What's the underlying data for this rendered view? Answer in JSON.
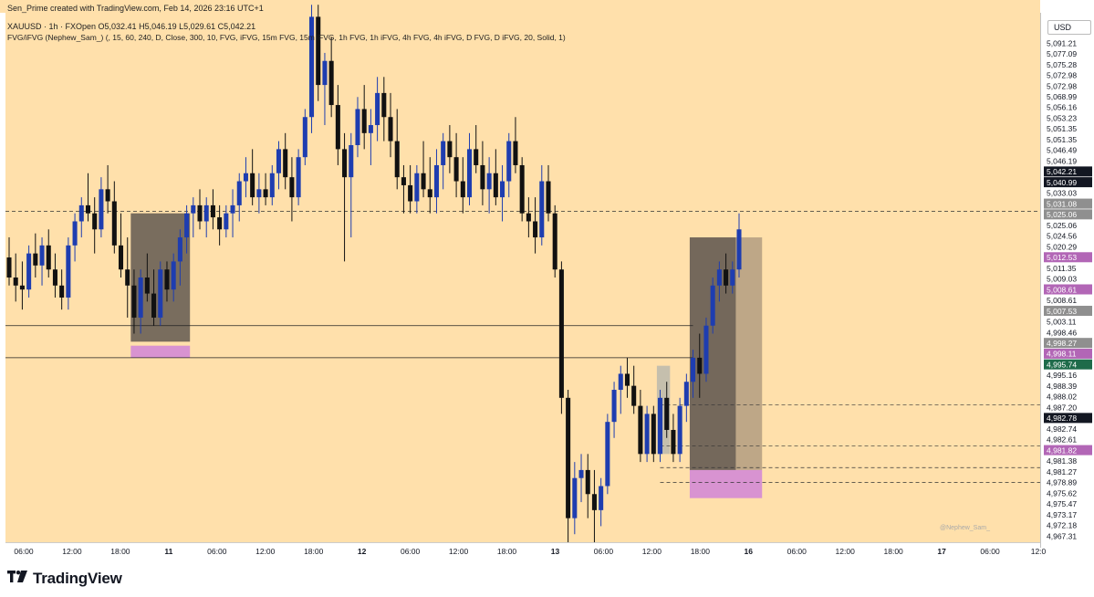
{
  "header": {
    "line1": "Sen_Prime created with TradingView.com, Feb 14, 2026 23:16 UTC+1",
    "line2": "XAUUSD · 1h · FXOpen  O5,032.41  H5,046.19  L5,029.61  C5,042.21",
    "line3": "FVG/iFVG (Nephew_Sam_) (, 15, 60, 240, D, Close, 300, 10, FVG, iFVG, 15m FVG, 15m iFVG, 1h FVG, 1h iFVG, 4h FVG, 4h iFVG, D FVG, D iFVG, 20, Solid, 1)"
  },
  "currency_label": "USD",
  "brand": "TradingView",
  "watermark": "@Nephew_Sam_",
  "colors": {
    "background": "#FFE0AB",
    "bull": "#1E3DB0",
    "bear": "#111111",
    "pink": "#D58CD4",
    "dark_zone": "#6E6357",
    "tan_zone": "#B8A283",
    "grey_bar": "#B6B7AE"
  },
  "chart_data": {
    "type": "candlestick",
    "symbol": "XAUUSD",
    "timeframe": "1h",
    "y_ticks": [
      "5,091.21",
      "5,077.09",
      "5,075.28",
      "5,072.98",
      "5,072.98",
      "5,068.99",
      "5,056.16",
      "5,053.23",
      "5,051.35",
      "5,051.35",
      "5,046.49",
      "5,046.19",
      "5,042.21",
      "5,040.99",
      "5,033.03",
      "5,031.08",
      "5,025.06",
      "5,025.06",
      "5,024.56",
      "5,020.29",
      "5,012.53",
      "5,011.35",
      "5,009.03",
      "5,008.61",
      "5,008.61",
      "5,007.53",
      "5,003.11",
      "4,998.46",
      "4,998.27",
      "4,998.11",
      "4,995.74",
      "4,995.16",
      "4,988.39",
      "4,988.02",
      "4,987.20",
      "4,982.78",
      "4,982.74",
      "4,982.61",
      "4,981.82",
      "4,981.38",
      "4,981.27",
      "4,978.89",
      "4,975.62",
      "4,975.47",
      "4,973.17",
      "4,972.18",
      "4,967.31"
    ],
    "y_tick_styles": {
      "5,042.21": "dark",
      "5,040.99": "dark",
      "5,031.08": "grey",
      "5,025.06": "grey",
      "5,012.53": "pink",
      "5,008.61": "pink",
      "5,007.53": "grey",
      "4,998.27": "grey",
      "4,998.11": "pink",
      "4,995.74": "green",
      "4,982.78": "dark",
      "4,981.82": "pink"
    },
    "x_ticks": [
      "06:00",
      "12:00",
      "18:00",
      "11",
      "06:00",
      "12:00",
      "18:00",
      "12",
      "06:00",
      "12:00",
      "18:00",
      "13",
      "06:00",
      "12:00",
      "18:00",
      "16",
      "06:00",
      "12:00",
      "18:00",
      "17",
      "06:00",
      "12:0"
    ],
    "x_bold": [
      "11",
      "12",
      "13",
      "16",
      "17"
    ],
    "candles_ohlc": [
      [
        5035,
        5040,
        5028,
        5030
      ],
      [
        5030,
        5036,
        5024,
        5028
      ],
      [
        5028,
        5034,
        5022,
        5027
      ],
      [
        5027,
        5038,
        5025,
        5036
      ],
      [
        5036,
        5041,
        5030,
        5033
      ],
      [
        5033,
        5040,
        5028,
        5038
      ],
      [
        5038,
        5042,
        5030,
        5032
      ],
      [
        5032,
        5036,
        5025,
        5028
      ],
      [
        5028,
        5032,
        5022,
        5025
      ],
      [
        5025,
        5040,
        5022,
        5038
      ],
      [
        5038,
        5046,
        5034,
        5044
      ],
      [
        5044,
        5050,
        5040,
        5048
      ],
      [
        5048,
        5056,
        5044,
        5046
      ],
      [
        5046,
        5050,
        5036,
        5042
      ],
      [
        5042,
        5055,
        5040,
        5052
      ],
      [
        5052,
        5058,
        5046,
        5049
      ],
      [
        5049,
        5054,
        5036,
        5038
      ],
      [
        5038,
        5046,
        5030,
        5032
      ],
      [
        5032,
        5040,
        5020,
        5028
      ],
      [
        5028,
        5032,
        5016,
        5020
      ],
      [
        5020,
        5032,
        5016,
        5030
      ],
      [
        5030,
        5036,
        5024,
        5026
      ],
      [
        5026,
        5032,
        5018,
        5020
      ],
      [
        5020,
        5034,
        5018,
        5032
      ],
      [
        5032,
        5034,
        5024,
        5027
      ],
      [
        5027,
        5036,
        5024,
        5034
      ],
      [
        5034,
        5042,
        5028,
        5040
      ],
      [
        5040,
        5048,
        5036,
        5046
      ],
      [
        5046,
        5050,
        5040,
        5048
      ],
      [
        5048,
        5052,
        5042,
        5044
      ],
      [
        5044,
        5050,
        5040,
        5048
      ],
      [
        5048,
        5052,
        5042,
        5045
      ],
      [
        5045,
        5048,
        5038,
        5042
      ],
      [
        5042,
        5048,
        5040,
        5046
      ],
      [
        5046,
        5052,
        5040,
        5048
      ],
      [
        5048,
        5056,
        5044,
        5054
      ],
      [
        5054,
        5060,
        5050,
        5056
      ],
      [
        5056,
        5062,
        5048,
        5050
      ],
      [
        5050,
        5056,
        5046,
        5052
      ],
      [
        5052,
        5056,
        5048,
        5050
      ],
      [
        5050,
        5058,
        5048,
        5056
      ],
      [
        5056,
        5064,
        5052,
        5062
      ],
      [
        5062,
        5066,
        5052,
        5055
      ],
      [
        5055,
        5060,
        5044,
        5050
      ],
      [
        5050,
        5062,
        5048,
        5060
      ],
      [
        5060,
        5072,
        5058,
        5070
      ],
      [
        5070,
        5098,
        5066,
        5095
      ],
      [
        5095,
        5098,
        5074,
        5078
      ],
      [
        5078,
        5086,
        5068,
        5084
      ],
      [
        5084,
        5090,
        5070,
        5073
      ],
      [
        5073,
        5078,
        5058,
        5062
      ],
      [
        5062,
        5066,
        5034,
        5055
      ],
      [
        5055,
        5066,
        5040,
        5063
      ],
      [
        5063,
        5075,
        5060,
        5072
      ],
      [
        5072,
        5078,
        5062,
        5066
      ],
      [
        5066,
        5072,
        5058,
        5068
      ],
      [
        5068,
        5080,
        5064,
        5076
      ],
      [
        5076,
        5080,
        5064,
        5070
      ],
      [
        5070,
        5076,
        5060,
        5064
      ],
      [
        5064,
        5072,
        5052,
        5055
      ],
      [
        5055,
        5058,
        5046,
        5053
      ],
      [
        5053,
        5058,
        5046,
        5049
      ],
      [
        5049,
        5058,
        5046,
        5056
      ],
      [
        5056,
        5064,
        5050,
        5052
      ],
      [
        5052,
        5060,
        5046,
        5050
      ],
      [
        5050,
        5062,
        5046,
        5058
      ],
      [
        5058,
        5066,
        5052,
        5064
      ],
      [
        5064,
        5068,
        5056,
        5060
      ],
      [
        5060,
        5066,
        5050,
        5054
      ],
      [
        5054,
        5060,
        5046,
        5050
      ],
      [
        5050,
        5066,
        5048,
        5062
      ],
      [
        5062,
        5068,
        5056,
        5058
      ],
      [
        5058,
        5064,
        5048,
        5052
      ],
      [
        5052,
        5060,
        5046,
        5056
      ],
      [
        5056,
        5062,
        5048,
        5050
      ],
      [
        5050,
        5058,
        5044,
        5054
      ],
      [
        5054,
        5066,
        5050,
        5064
      ],
      [
        5064,
        5070,
        5056,
        5058
      ],
      [
        5058,
        5060,
        5044,
        5046
      ],
      [
        5046,
        5050,
        5040,
        5044
      ],
      [
        5044,
        5050,
        5036,
        5040
      ],
      [
        5040,
        5058,
        5038,
        5054
      ],
      [
        5054,
        5058,
        5044,
        5046
      ],
      [
        5046,
        5048,
        5030,
        5032
      ],
      [
        5032,
        5034,
        4996,
        5000
      ],
      [
        5000,
        5002,
        4960,
        4970
      ],
      [
        4970,
        4984,
        4966,
        4980
      ],
      [
        4980,
        4986,
        4974,
        4982
      ],
      [
        4982,
        4986,
        4970,
        4976
      ],
      [
        4976,
        4982,
        4964,
        4972
      ],
      [
        4972,
        4980,
        4968,
        4978
      ],
      [
        4978,
        4996,
        4976,
        4994
      ],
      [
        4994,
        5004,
        4990,
        5002
      ],
      [
        5002,
        5008,
        4996,
        5006
      ],
      [
        5006,
        5010,
        5000,
        5003
      ],
      [
        5003,
        5008,
        4996,
        4998
      ],
      [
        4998,
        5002,
        4984,
        4986
      ],
      [
        4986,
        4998,
        4984,
        4996
      ],
      [
        4996,
        4998,
        4984,
        4986
      ],
      [
        4986,
        5002,
        4984,
        5000
      ],
      [
        5000,
        5004,
        4990,
        4992
      ],
      [
        4992,
        4996,
        4984,
        4986
      ],
      [
        4986,
        5000,
        4984,
        4998
      ],
      [
        4998,
        5006,
        4994,
        5004
      ],
      [
        5004,
        5012,
        5000,
        5010
      ],
      [
        5010,
        5016,
        5000,
        5006
      ],
      [
        5006,
        5020,
        5004,
        5018
      ],
      [
        5018,
        5030,
        5016,
        5028
      ],
      [
        5028,
        5034,
        5024,
        5032
      ],
      [
        5032,
        5036,
        5026,
        5028
      ],
      [
        5028,
        5034,
        5026,
        5032
      ],
      [
        5032,
        5046,
        5030,
        5042
      ]
    ],
    "zones": [
      {
        "kind": "tan",
        "from_candle": 104,
        "to_candle": 114,
        "top": 5040,
        "bottom": 4982
      },
      {
        "kind": "dark",
        "from_candle": 104,
        "to_candle": 110,
        "top": 5040,
        "bottom": 4982
      },
      {
        "kind": "pink",
        "from_candle": 104,
        "to_candle": 114,
        "top": 4982,
        "bottom": 4975
      },
      {
        "kind": "dark",
        "from_candle": 19,
        "to_candle": 27,
        "top": 5046,
        "bottom": 5014
      },
      {
        "kind": "pink",
        "from_candle": 19,
        "to_candle": 27,
        "top": 5013,
        "bottom": 5010
      },
      {
        "kind": "grey",
        "from_candle": 99,
        "to_candle": 100,
        "top": 5008,
        "bottom": 4986
      }
    ]
  }
}
